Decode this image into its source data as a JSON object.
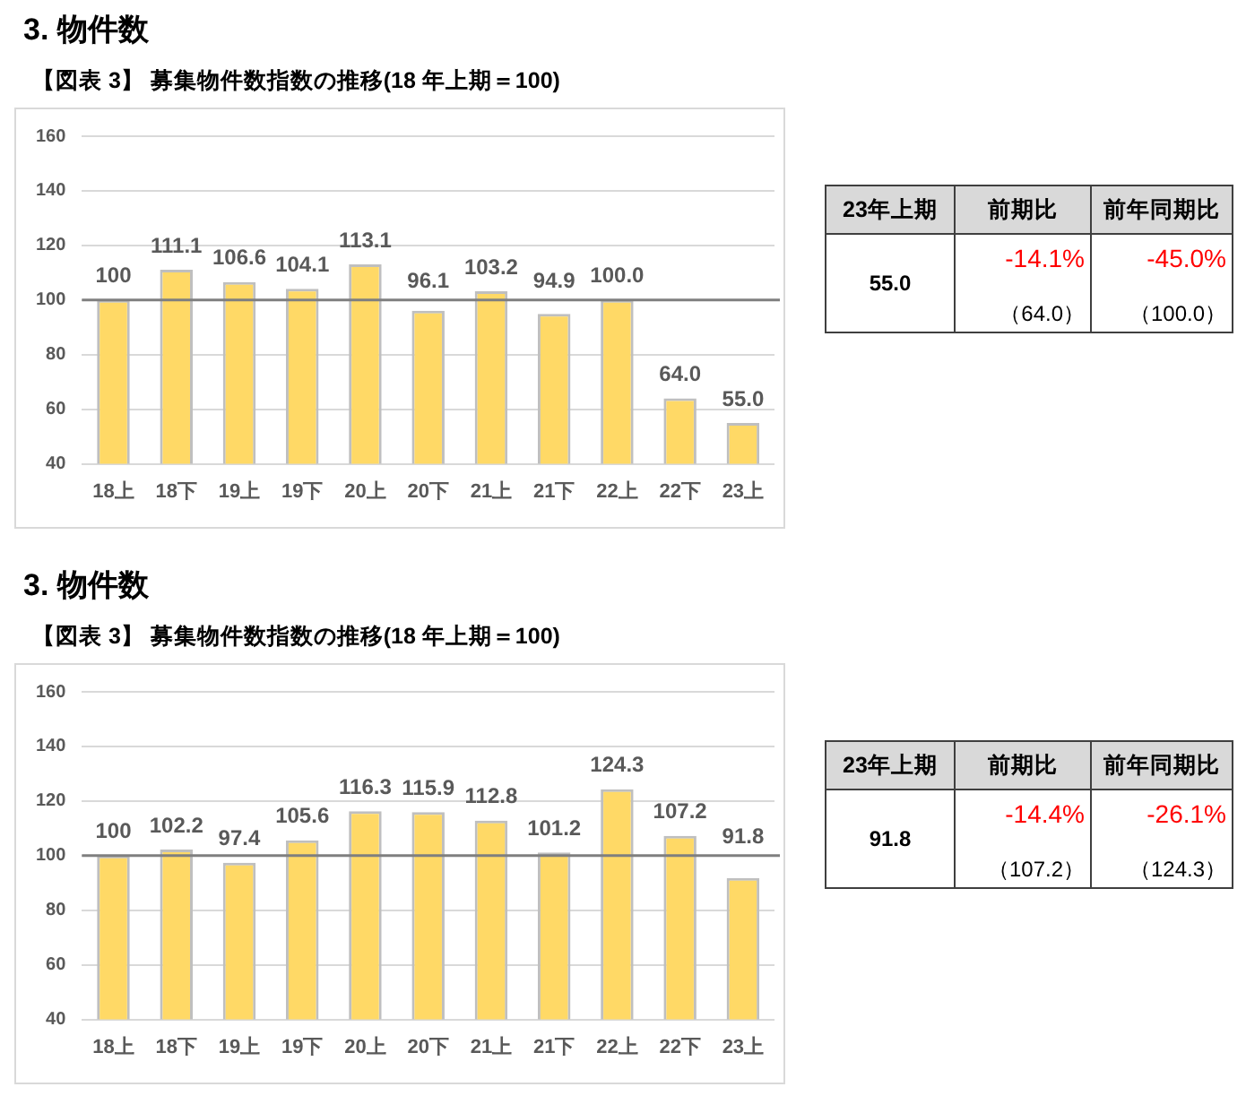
{
  "chart_data": [
    {
      "type": "bar",
      "title": "3. 物件数",
      "subtitle": "【図表 3】 募集物件数指数の推移(18 年上期＝100)",
      "categories": [
        "18上",
        "18下",
        "19上",
        "19下",
        "20上",
        "20下",
        "21上",
        "21下",
        "22上",
        "22下",
        "23上"
      ],
      "values": [
        100,
        111.1,
        106.6,
        104.1,
        113.1,
        96.1,
        103.2,
        94.9,
        100.0,
        64.0,
        55.0
      ],
      "value_labels": [
        "100",
        "111.1",
        "106.6",
        "104.1",
        "113.1",
        "96.1",
        "103.2",
        "94.9",
        "100.0",
        "64.0",
        "55.0"
      ],
      "color": "#ffd966",
      "ylim": [
        40,
        160
      ],
      "yticks": [
        40,
        60,
        80,
        100,
        120,
        140,
        160
      ],
      "grid": "y",
      "ref_lines": [
        {
          "axis": "y",
          "value": 100,
          "color": "#7f7f7f"
        }
      ]
    },
    {
      "type": "other",
      "annotations": [
        "23年上期",
        "前期比",
        "前年同期比",
        "55.0",
        "-14.1%",
        "-45.0%",
        "（64.0）",
        "（100.0）"
      ]
    },
    {
      "type": "bar",
      "title": "3. 物件数",
      "subtitle": "【図表 3】 募集物件数指数の推移(18 年上期＝100)",
      "categories": [
        "18上",
        "18下",
        "19上",
        "19下",
        "20上",
        "20下",
        "21上",
        "21下",
        "22上",
        "22下",
        "23上"
      ],
      "values": [
        100,
        102.2,
        97.4,
        105.6,
        116.3,
        115.9,
        112.8,
        101.2,
        124.3,
        107.2,
        91.8
      ],
      "value_labels": [
        "100",
        "102.2",
        "97.4",
        "105.6",
        "116.3",
        "115.9",
        "112.8",
        "101.2",
        "124.3",
        "107.2",
        "91.8"
      ],
      "color": "#ffd966",
      "ylim": [
        40,
        160
      ],
      "yticks": [
        40,
        60,
        80,
        100,
        120,
        140,
        160
      ],
      "grid": "y",
      "ref_lines": [
        {
          "axis": "y",
          "value": 100,
          "color": "#7f7f7f"
        }
      ]
    },
    {
      "type": "other",
      "annotations": [
        "23年上期",
        "前期比",
        "前年同期比",
        "91.8",
        "-14.4%",
        "-26.1%",
        "（107.2）",
        "（124.3）"
      ]
    }
  ]
}
